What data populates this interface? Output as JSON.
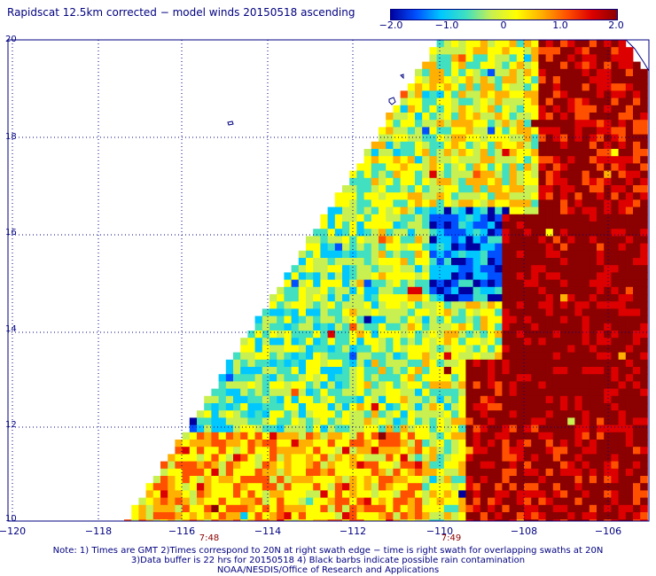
{
  "title": "Rapidscat 12.5km corrected − model winds 20150518 ascending",
  "colorbar": {
    "ticks": [
      "−2.0",
      "−1.0",
      "0",
      "1.0",
      "2.0"
    ],
    "tick_values": [
      -2.0,
      -1.0,
      0,
      1.0,
      2.0
    ],
    "colors": [
      "#0000a0",
      "#0050ff",
      "#00c8ff",
      "#40e0c0",
      "#c8f050",
      "#ffff00",
      "#ffb000",
      "#ff5000",
      "#dd0000",
      "#8b0000"
    ]
  },
  "axes": {
    "lat_labels": [
      "20",
      "18",
      "16",
      "14",
      "12",
      "10"
    ],
    "lat_values": [
      20,
      18,
      16,
      14,
      12,
      10
    ],
    "lon_labels": [
      "−120",
      "−118",
      "−116",
      "−114",
      "−112",
      "−110",
      "−108",
      "−106"
    ],
    "lon_values": [
      -120,
      -118,
      -116,
      -114,
      -112,
      -110,
      -108,
      -106
    ],
    "lon_range": [
      -120,
      -105.5
    ],
    "lat_range": [
      10,
      20
    ]
  },
  "times": [
    {
      "label": "7:48",
      "lon": -115.2
    },
    {
      "label": "7:49",
      "lon": -109.7
    }
  ],
  "notes": {
    "line1": "Note: 1) Times are GMT 2)Times correspond to 20N at right swath edge − time is right swath for overlapping swaths at 20N",
    "line2": "3)Data buffer is 22 hrs for 20150518 4) Black barbs indicate possible rain contamination",
    "line3": "NOAA/NESDIS/Office of Research and Applications"
  }
}
